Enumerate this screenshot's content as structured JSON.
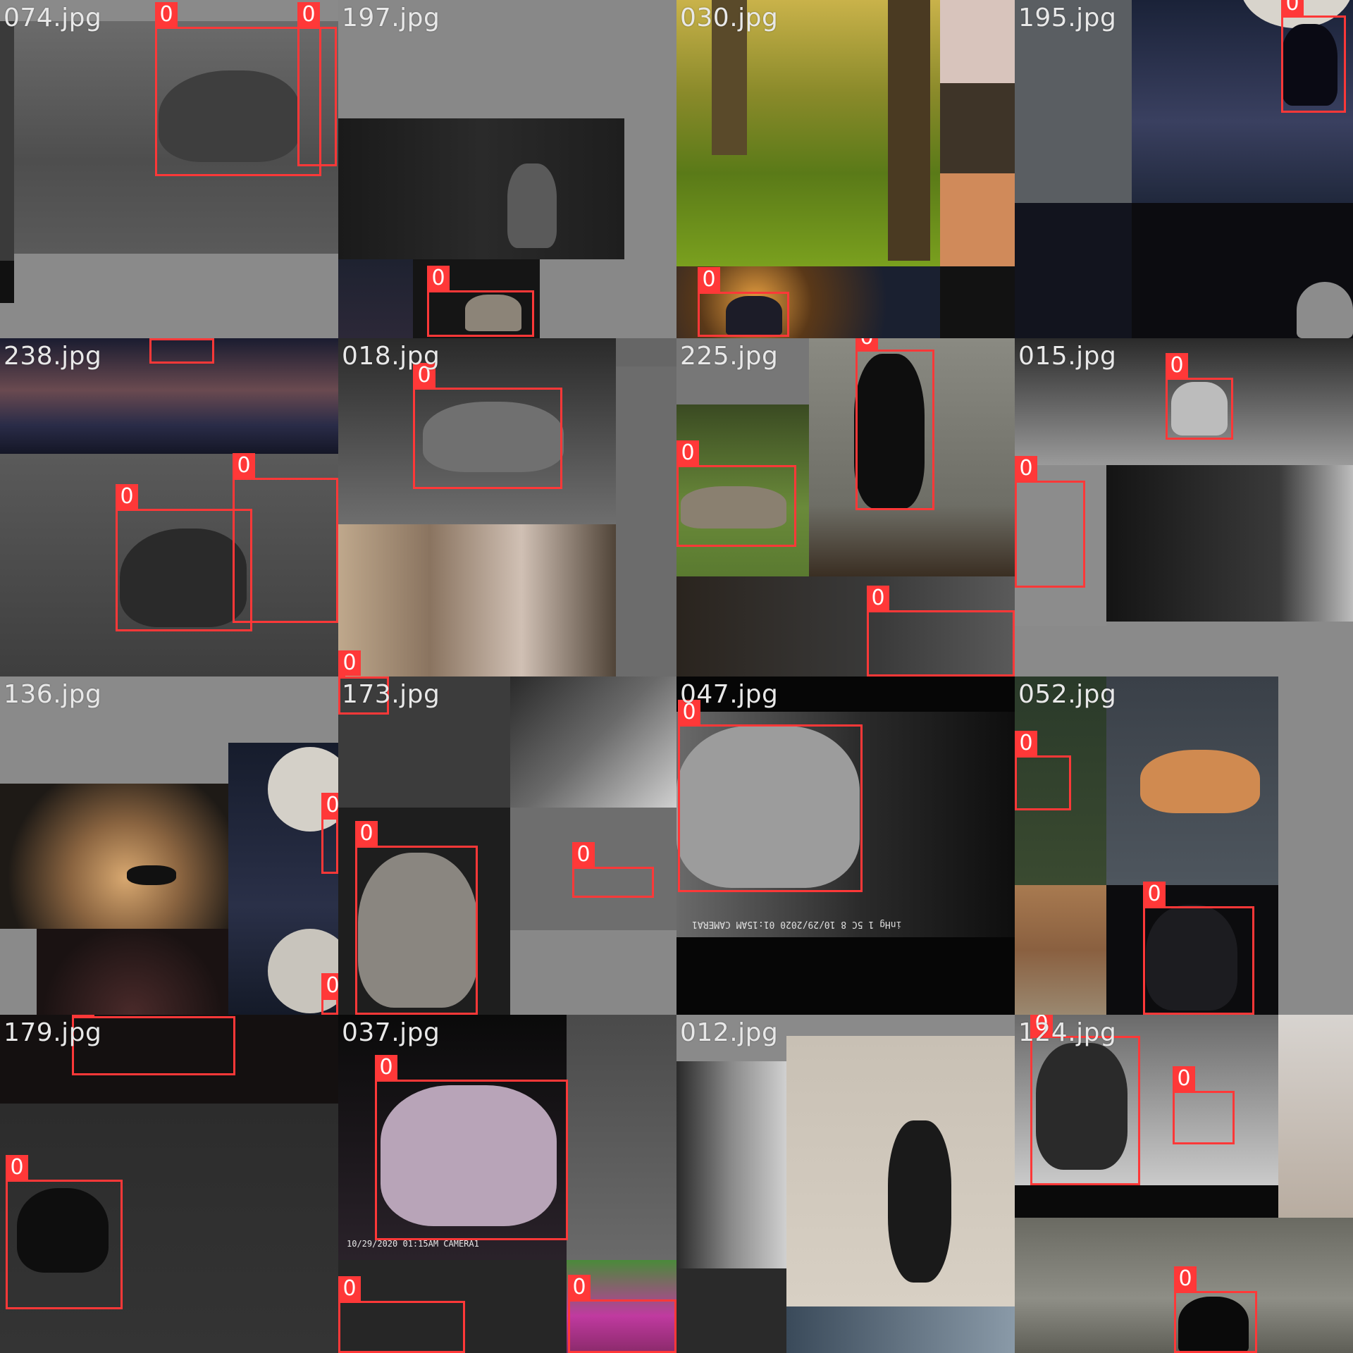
{
  "mosaic": {
    "bbox_color": "#ff3838",
    "tiles": [
      {
        "filename": "074.jpg",
        "boxes": [
          "0",
          "0"
        ]
      },
      {
        "filename": "197.jpg",
        "boxes": [
          "0"
        ]
      },
      {
        "filename": "030.jpg",
        "boxes": [
          "0"
        ]
      },
      {
        "filename": "195.jpg",
        "boxes": [
          "0"
        ]
      },
      {
        "filename": "238.jpg",
        "boxes": [
          "0",
          "0",
          "0"
        ]
      },
      {
        "filename": "018.jpg",
        "boxes": [
          "0",
          "0"
        ]
      },
      {
        "filename": "225.jpg",
        "boxes": [
          "0",
          "0",
          "0"
        ]
      },
      {
        "filename": "015.jpg",
        "boxes": [
          "0",
          "0"
        ]
      },
      {
        "filename": "136.jpg",
        "boxes": [
          "0",
          "0"
        ]
      },
      {
        "filename": "173.jpg",
        "boxes": [
          "0",
          "0"
        ]
      },
      {
        "filename": "047.jpg",
        "boxes": [
          "0"
        ]
      },
      {
        "filename": "052.jpg",
        "boxes": [
          "0",
          "0"
        ]
      },
      {
        "filename": "179.jpg",
        "boxes": [
          "0",
          "0"
        ]
      },
      {
        "filename": "037.jpg",
        "boxes": [
          "0",
          "0",
          "0"
        ]
      },
      {
        "filename": "012.jpg",
        "boxes": []
      },
      {
        "filename": "124.jpg",
        "boxes": [
          "0",
          "0",
          "0"
        ]
      }
    ],
    "camera_stamp_1": "10/29/2020  01:15AM  CAMERA1",
    "camera_stamp_2": "inHg  1  5C  8  10/29/2020  01:15AM  CAMERA1"
  }
}
